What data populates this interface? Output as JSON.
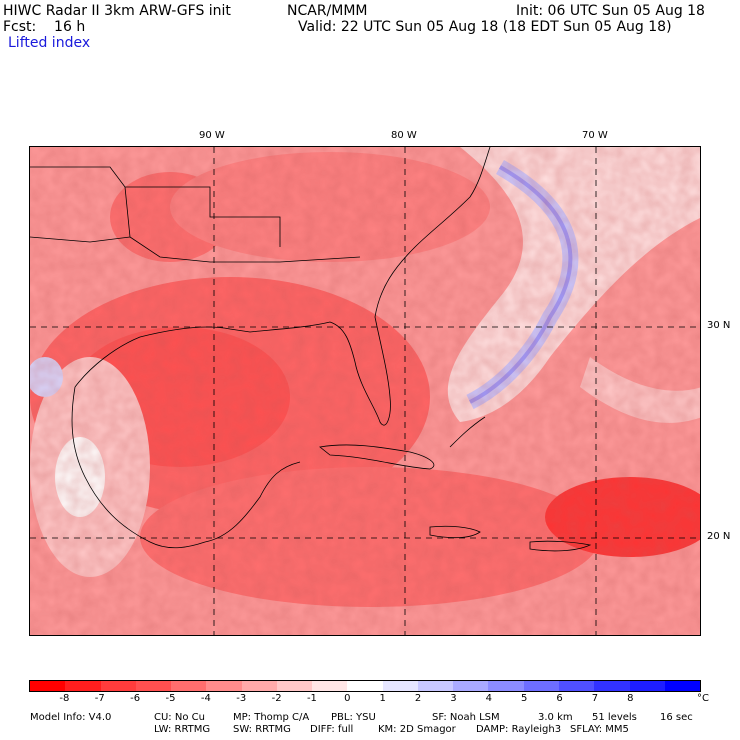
{
  "header": {
    "line1_left": "HIWC Radar II 3km ARW-GFS init",
    "line1_mid": "NCAR/MMM",
    "line1_right": "Init: 06 UTC Sun 05 Aug 18",
    "line2_left": "Fcst:    16 h",
    "line2_right": "Valid: 22 UTC Sun 05 Aug 18 (18 EDT Sun 05 Aug 18)",
    "field_name": "Lifted index"
  },
  "map": {
    "lon_labels": [
      "90 W",
      "80 W",
      "70 W"
    ],
    "lat_labels": [
      "30 N",
      "20 N"
    ]
  },
  "colorbar": {
    "ticks": [
      "-8",
      "-7",
      "-6",
      "-5",
      "-4",
      "-3",
      "-2",
      "-1",
      "0",
      "1",
      "2",
      "3",
      "4",
      "5",
      "6",
      "7",
      "8"
    ],
    "unit": "°C",
    "colors": [
      "#ff0000",
      "#ff1e1e",
      "#ff3c3c",
      "#ff5050",
      "#ff6e6e",
      "#ff8c8c",
      "#ffaaaa",
      "#ffc8c8",
      "#ffe6e6",
      "#ffffff",
      "#e6e6ff",
      "#c8c8ff",
      "#aaaaff",
      "#8c8cff",
      "#6e6eff",
      "#5050ff",
      "#3232ff",
      "#1e1eff",
      "#0000ff"
    ]
  },
  "footer": {
    "model_info": "Model Info: V4.0",
    "cu": "CU: No Cu",
    "mp": "MP: Thomp C/A",
    "pbl": "PBL: YSU",
    "sf": "SF: Noah LSM",
    "res": "3.0 km",
    "levels": "51 levels",
    "dt": "16 sec",
    "lw": "LW: RRTMG",
    "sw": "SW: RRTMG",
    "diff": "DIFF: full",
    "km": "KM: 2D Smagor",
    "damp": "DAMP: Rayleigh3",
    "sflay": "SFLAY: MM5"
  }
}
